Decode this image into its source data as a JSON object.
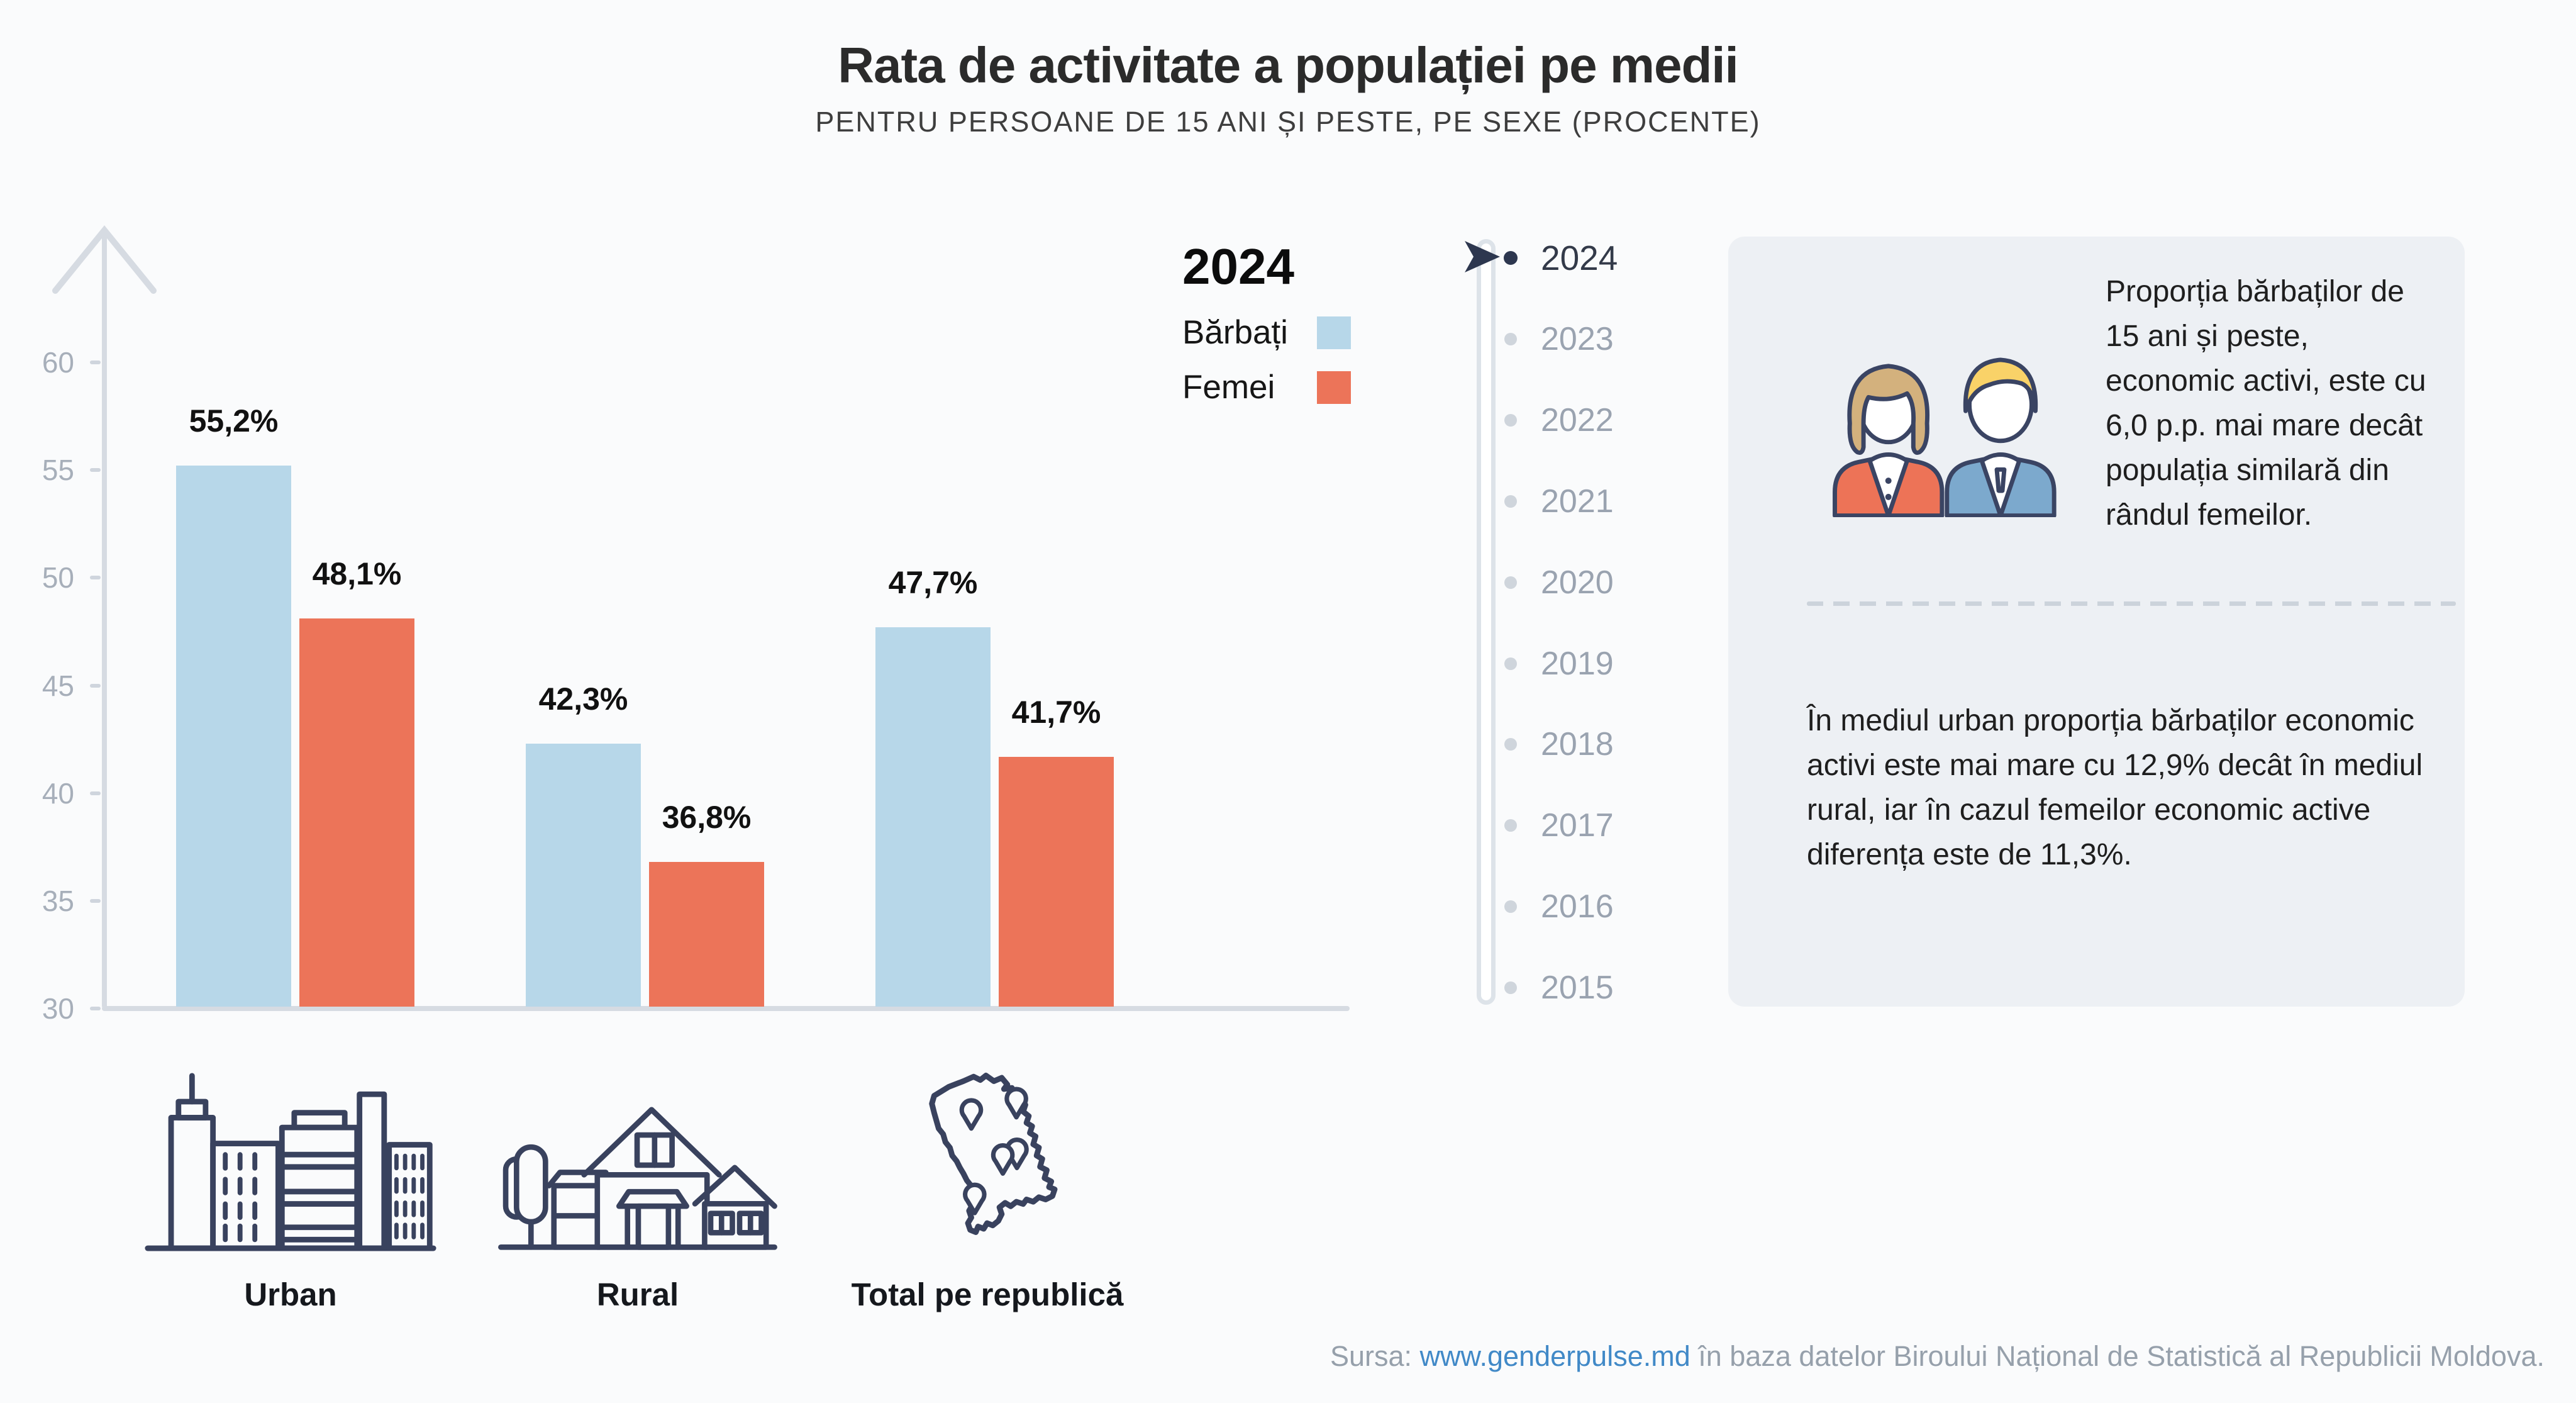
{
  "title": "Rata de activitate a populației pe medii",
  "subtitle": "PENTRU PERSOANE DE 15 ANI ȘI PESTE, PE SEXE (PROCENTE)",
  "chart_data": {
    "type": "bar",
    "categories": [
      "Urban",
      "Rural",
      "Total pe republică"
    ],
    "series": [
      {
        "name": "Bărbați",
        "color": "#b7d7e9",
        "values": [
          55.2,
          42.3,
          47.7
        ]
      },
      {
        "name": "Femei",
        "color": "#ec7459",
        "values": [
          48.1,
          36.8,
          41.7
        ]
      }
    ],
    "value_labels": [
      [
        "55,2%",
        "48,1%"
      ],
      [
        "42,3%",
        "36,8%"
      ],
      [
        "47,7%",
        "41,7%"
      ]
    ],
    "yticks": [
      30,
      35,
      40,
      45,
      50,
      55,
      60
    ],
    "ylim": [
      30,
      62
    ],
    "grid": false,
    "legend_title": "2024",
    "legend_position": "top-right"
  },
  "timeline": {
    "years": [
      "2024",
      "2023",
      "2022",
      "2021",
      "2020",
      "2019",
      "2018",
      "2017",
      "2016",
      "2015"
    ],
    "selected_year": "2024"
  },
  "insight_panel": {
    "text_primary": "Proporția bărbaților de 15 ani și peste, economic activi, este cu 6,0 p.p. mai mare decât populația similară din rândul femeilor.",
    "text_secondary": "În mediul urban proporția bărbaților economic activi este mai mare cu 12,9% decât în mediul rural, iar în cazul femeilor economic active diferența este de 11,3%."
  },
  "footer": {
    "source_prefix": "Sursa: ",
    "source_link": "www.genderpulse.md",
    "source_suffix": " în baza datelor Biroului Național de Statistică al Republicii Moldova."
  },
  "colors": {
    "barbati_blue": "#b7d7e9",
    "femei_orange": "#ec7459",
    "navy_outline": "#3a4361",
    "panel_background": "#edf0f4",
    "link_blue": "#4189c7",
    "axis_gray": "#d6dbe2",
    "inactive_gray": "#9aa3b0"
  }
}
